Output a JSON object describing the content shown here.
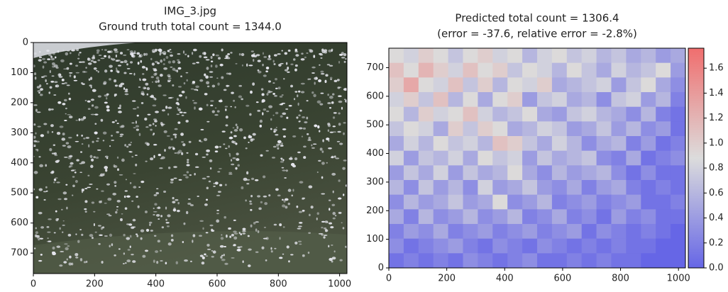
{
  "chart_data": [
    {
      "type": "image",
      "title": "IMG_3.jpg",
      "subtitle": "Ground truth total count = 1344.0",
      "xlim": [
        0,
        1024
      ],
      "ylim": [
        768,
        0
      ],
      "xticks": [
        0,
        200,
        400,
        600,
        800,
        1000
      ],
      "yticks": [
        0,
        100,
        200,
        300,
        400,
        500,
        600,
        700
      ]
    },
    {
      "type": "heatmap",
      "title": "Predicted total count = 1306.4",
      "subtitle": "(error = -37.6, relative error = -2.8%)",
      "xlim": [
        0,
        1024
      ],
      "ylim": [
        0,
        768
      ],
      "xticks": [
        0,
        200,
        400,
        600,
        800,
        1000
      ],
      "yticks": [
        0,
        100,
        200,
        300,
        400,
        500,
        600,
        700
      ],
      "colormap": [
        "#6666e6",
        "#dcdcdc",
        "#f06e6e"
      ],
      "clim": [
        0,
        1.76
      ],
      "cticks": [
        {
          "value": 0,
          "label": "0.0"
        },
        0.2,
        0.4,
        0.6,
        0.8,
        {
          "value": 1,
          "label": "1.0"
        },
        1.2,
        1.4,
        1.6
      ],
      "z": [
        [
          0.9,
          0.8,
          1.0,
          0.9,
          0.7,
          0.9,
          1.0,
          0.8,
          0.9,
          0.6,
          0.8,
          0.9,
          0.7,
          0.8,
          0.6,
          0.7,
          0.5,
          0.6,
          0.4,
          0.5
        ],
        [
          1.1,
          0.9,
          1.2,
          1.0,
          0.8,
          1.1,
          0.9,
          1.0,
          0.7,
          0.9,
          0.8,
          0.6,
          0.9,
          0.7,
          0.5,
          0.8,
          0.6,
          0.7,
          0.9,
          0.4
        ],
        [
          1.0,
          1.3,
          0.9,
          0.8,
          1.1,
          0.7,
          1.0,
          0.6,
          0.9,
          0.8,
          1.0,
          0.5,
          0.6,
          0.7,
          0.8,
          0.4,
          0.7,
          0.9,
          0.5,
          0.3
        ],
        [
          0.8,
          1.0,
          0.7,
          1.1,
          0.6,
          0.9,
          0.5,
          0.9,
          1.0,
          0.4,
          0.7,
          0.8,
          0.5,
          0.6,
          0.3,
          0.7,
          0.8,
          0.4,
          0.6,
          0.2
        ],
        [
          0.9,
          0.6,
          1.0,
          0.8,
          0.9,
          1.1,
          0.8,
          0.6,
          0.7,
          0.9,
          0.5,
          0.4,
          0.7,
          0.8,
          0.6,
          0.5,
          0.3,
          0.6,
          0.2,
          0.1
        ],
        [
          0.7,
          0.9,
          0.8,
          0.5,
          1.0,
          0.7,
          1.0,
          0.9,
          0.5,
          0.6,
          0.8,
          0.7,
          0.4,
          0.5,
          0.7,
          0.4,
          0.6,
          0.3,
          0.4,
          0.1
        ],
        [
          0.5,
          0.8,
          0.6,
          0.9,
          0.7,
          0.8,
          0.6,
          1.1,
          1.0,
          0.7,
          0.5,
          0.8,
          0.6,
          0.3,
          0.5,
          0.6,
          0.2,
          0.4,
          0.1,
          0.2
        ],
        [
          0.8,
          0.4,
          0.7,
          0.6,
          0.8,
          0.5,
          0.9,
          0.7,
          0.8,
          0.4,
          0.7,
          0.5,
          0.6,
          0.7,
          0.3,
          0.2,
          0.5,
          0.1,
          0.2,
          0.3
        ],
        [
          0.4,
          0.7,
          0.5,
          0.8,
          0.4,
          0.7,
          0.5,
          0.6,
          0.9,
          0.5,
          0.3,
          0.6,
          0.4,
          0.5,
          0.6,
          0.3,
          0.1,
          0.3,
          0.1,
          0.1
        ],
        [
          0.6,
          0.3,
          0.7,
          0.4,
          0.6,
          0.3,
          0.8,
          0.4,
          0.5,
          0.7,
          0.4,
          0.3,
          0.5,
          0.2,
          0.4,
          0.5,
          0.2,
          0.1,
          0.2,
          0.1
        ],
        [
          0.3,
          0.6,
          0.4,
          0.5,
          0.7,
          0.4,
          0.5,
          0.9,
          0.3,
          0.4,
          0.6,
          0.2,
          0.3,
          0.4,
          0.2,
          0.3,
          0.4,
          0.1,
          0.1,
          0.2
        ],
        [
          0.5,
          0.2,
          0.6,
          0.3,
          0.4,
          0.6,
          0.3,
          0.4,
          0.6,
          0.2,
          0.3,
          0.5,
          0.2,
          0.3,
          0.1,
          0.4,
          0.2,
          0.3,
          0.1,
          0.1
        ],
        [
          0.2,
          0.4,
          0.3,
          0.5,
          0.2,
          0.3,
          0.4,
          0.2,
          0.3,
          0.4,
          0.2,
          0.3,
          0.4,
          0.1,
          0.3,
          0.2,
          0.1,
          0.2,
          0.1,
          0.0
        ],
        [
          0.3,
          0.1,
          0.2,
          0.3,
          0.4,
          0.2,
          0.1,
          0.3,
          0.2,
          0.1,
          0.3,
          0.2,
          0.1,
          0.2,
          0.1,
          0.2,
          0.1,
          0.1,
          0.0,
          0.0
        ],
        [
          0.1,
          0.2,
          0.1,
          0.2,
          0.1,
          0.3,
          0.2,
          0.1,
          0.2,
          0.3,
          0.1,
          0.1,
          0.2,
          0.1,
          0.2,
          0.1,
          0.1,
          0.0,
          0.0,
          0.0
        ]
      ]
    }
  ]
}
